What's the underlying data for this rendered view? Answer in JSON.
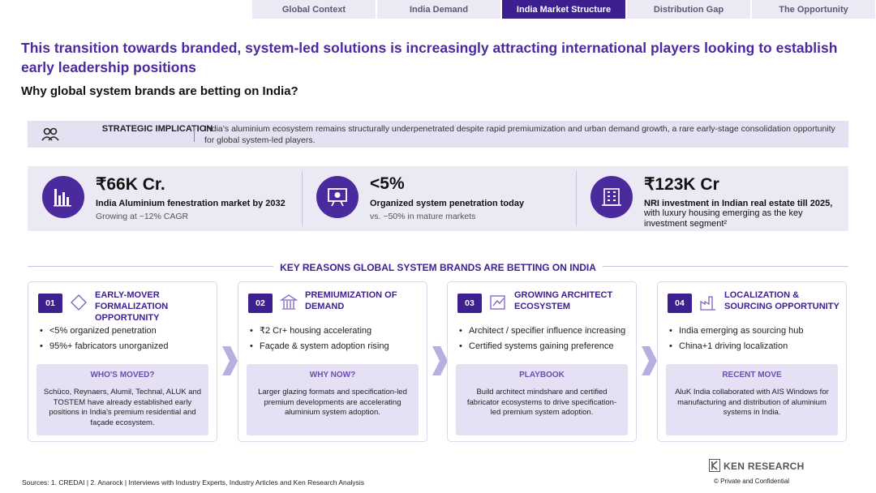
{
  "nav": {
    "tabs": [
      "Global Context",
      "India Demand",
      "India Market Structure",
      "Distribution Gap",
      "The Opportunity"
    ]
  },
  "header": {
    "title": "This transition towards branded, system-led solutions is increasingly attracting international players looking to establish early leadership positions",
    "subtitle": "Why global system brands are betting on India?"
  },
  "implication": {
    "label": "STRATEGIC IMPLICATION",
    "text": "India’s aluminium ecosystem remains structurally underpenetrated despite rapid premiumization and urban demand growth, a rare early-stage consolidation opportunity for global system-led players."
  },
  "stats": [
    {
      "value": "₹66K Cr.",
      "label": "India Aluminium fenestration market by 2032",
      "note": "Growing at ~12% CAGR"
    },
    {
      "value": "<5%",
      "label": "Organized system penetration today",
      "note": "vs. ~50% in mature markets"
    },
    {
      "value": "₹123K Cr",
      "label": "NRI investment in Indian real estate till 2025,",
      "note": "with luxury housing emerging as the key investment segment²"
    }
  ],
  "reasons": {
    "heading": "KEY REASONS GLOBAL SYSTEM BRANDS ARE BETTING ON INDIA",
    "cards": [
      {
        "number": "01",
        "title": "EARLY-MOVER FORMALIZATION OPPORTUNITY",
        "bullets": [
          "<5% organized penetration",
          "95%+ fabricators unorganized"
        ],
        "box_title": "WHO'S MOVED?",
        "box_text": "Schüco, Reynaers, Alumil, Technal, ALUK and TOSTEM have already established early positions in India's premium residential and façade ecosystem."
      },
      {
        "number": "02",
        "title": "PREMIUMIZATION OF DEMAND",
        "bullets": [
          "₹2 Cr+ housing accelerating",
          "Façade & system adoption rising"
        ],
        "box_title": "WHY NOW?",
        "box_text": "Larger glazing formats and specification-led premium developments are accelerating aluminium system adoption."
      },
      {
        "number": "03",
        "title": "GROWING ARCHITECT ECOSYSTEM",
        "bullets": [
          "Architect / specifier influence increasing",
          "Certified systems gaining preference"
        ],
        "box_title": "PLAYBOOK",
        "box_text": "Build architect mindshare and certified fabricator ecosystems to drive specification-led premium system adoption."
      },
      {
        "number": "04",
        "title": "LOCALIZATION & SOURCING OPPORTUNITY",
        "bullets": [
          "India emerging as sourcing hub",
          "China+1 driving localization"
        ],
        "box_title": "RECENT MOVE",
        "box_text": "AluK India collaborated with AIS Windows for manufacturing and distribution of aluminium systems in India."
      }
    ]
  },
  "footer": {
    "sources": "Sources: 1. CREDAI | 2. Anarock | Interviews with Industry Experts, Industry Articles and Ken Research Analysis",
    "brand": "KEN RESEARCH",
    "confidential": "© Private and Confidential"
  }
}
